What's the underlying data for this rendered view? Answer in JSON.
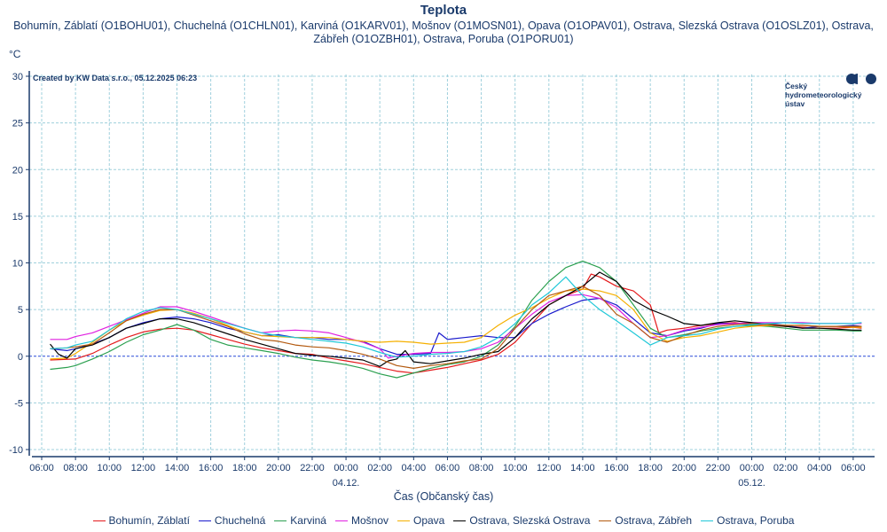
{
  "chart_data": {
    "type": "line",
    "title": "Teplota",
    "subtitle": "Bohumín, Záblatí (O1BOHU01), Chuchelná (O1CHLN01), Karviná (O1KARV01), Mošnov (O1MOSN01), Opava (O1OPAV01), Ostrava, Slezská Ostrava (O1OSLZ01), Ostrava, Zábřeh (O1OZBH01), Ostrava, Poruba (O1PORU01)",
    "ylabel": "°C",
    "xlabel": "Čas (Občanský čas)",
    "credit": "Created by KW Data s.r.o., 05.12.2025 06:23",
    "ylim": [
      -10,
      30
    ],
    "yticks": [
      "30",
      "25",
      "20",
      "15",
      "10",
      "5",
      "0",
      "-5",
      "-10"
    ],
    "ytick_values": [
      30,
      25,
      20,
      15,
      10,
      5,
      0,
      -5,
      -10
    ],
    "xlim_hours": [
      -0.8,
      49.5
    ],
    "xticks": [
      "06:00",
      "08:00",
      "10:00",
      "12:00",
      "14:00",
      "16:00",
      "18:00",
      "20:00",
      "22:00",
      "00:00",
      "02:00",
      "04:00",
      "06:00",
      "08:00",
      "10:00",
      "12:00",
      "14:00",
      "16:00",
      "18:00",
      "20:00",
      "22:00",
      "00:00",
      "02:00",
      "04:00",
      "06:00"
    ],
    "xtick_hours": [
      0,
      2,
      4,
      6,
      8,
      10,
      12,
      14,
      16,
      18,
      20,
      22,
      24,
      26,
      28,
      30,
      32,
      34,
      36,
      38,
      40,
      42,
      44,
      46,
      48
    ],
    "date_labels": [
      {
        "text": "04.12.",
        "hour": 18
      },
      {
        "text": "05.12.",
        "hour": 42
      }
    ],
    "x_unit": "hours since 03.12. 06:00",
    "grid": true,
    "legend_position": "bottom",
    "series": [
      {
        "name": "Bohumín, Záblatí",
        "color": "#e41a1c",
        "x": [
          0.5,
          2,
          3,
          4,
          5,
          6,
          7,
          8,
          9,
          10,
          11,
          12,
          13,
          14,
          15,
          16,
          17,
          18,
          19,
          20,
          21,
          22,
          23,
          24,
          25,
          26,
          27,
          28,
          29,
          30,
          31,
          32,
          32.5,
          33,
          34,
          35,
          36,
          36.5,
          37,
          38,
          39,
          40,
          41,
          42,
          43,
          44,
          45,
          46,
          47,
          48,
          48.5
        ],
        "y": [
          -0.4,
          -0.3,
          0.3,
          1.2,
          2.0,
          2.6,
          2.9,
          3.0,
          2.8,
          2.3,
          1.8,
          1.3,
          0.9,
          0.6,
          0.3,
          0.2,
          -0.2,
          -0.5,
          -0.8,
          -1.2,
          -1.6,
          -1.8,
          -1.5,
          -1.2,
          -0.8,
          -0.4,
          0.2,
          1.5,
          3.5,
          5.5,
          6.5,
          7.2,
          8.8,
          8.5,
          7.5,
          7.0,
          5.5,
          2.5,
          2.8,
          3.0,
          3.3,
          3.5,
          3.6,
          3.4,
          3.3,
          3.2,
          3.1,
          3.0,
          3.0,
          3.1,
          3.0
        ]
      },
      {
        "name": "Chuchelná",
        "color": "#1a1acc",
        "x": [
          0.5,
          1.5,
          2,
          3,
          4,
          5,
          6,
          7,
          8,
          9,
          10,
          11,
          12,
          13,
          14,
          15,
          16,
          17,
          18,
          19,
          20,
          21,
          22,
          23,
          23.5,
          24,
          25,
          26,
          27,
          28,
          29,
          30,
          31,
          32,
          33,
          34,
          35,
          36,
          37,
          38,
          39,
          40,
          41,
          42,
          43,
          44,
          45,
          46,
          47,
          48,
          48.5
        ],
        "y": [
          0.8,
          0.6,
          0.8,
          1.3,
          2.0,
          3.0,
          3.6,
          4.0,
          4.2,
          4.0,
          3.6,
          3.0,
          2.6,
          2.2,
          2.3,
          2.0,
          2.0,
          1.8,
          1.8,
          1.6,
          0.8,
          0.2,
          0.2,
          0.3,
          2.5,
          1.8,
          2.0,
          2.2,
          2.0,
          2.0,
          3.5,
          4.5,
          5.3,
          6.0,
          6.2,
          5.5,
          4.0,
          2.5,
          2.2,
          2.7,
          3.0,
          3.5,
          3.5,
          3.4,
          3.5,
          3.3,
          3.0,
          3.2,
          3.2,
          3.3,
          3.2
        ]
      },
      {
        "name": "Karviná",
        "color": "#2ca050",
        "x": [
          0.5,
          1.5,
          2,
          3,
          4,
          5,
          6,
          7,
          8,
          9,
          10,
          11,
          12,
          13,
          14,
          15,
          16,
          17,
          18,
          19,
          20,
          21,
          22,
          23,
          24,
          25,
          26,
          27,
          28,
          29,
          30,
          31,
          32,
          33,
          34,
          35,
          36,
          37,
          38,
          39,
          40,
          41,
          42,
          43,
          44,
          45,
          46,
          47,
          48,
          48.5
        ],
        "y": [
          -1.4,
          -1.2,
          -1.0,
          -0.3,
          0.5,
          1.5,
          2.3,
          2.8,
          3.4,
          2.8,
          1.8,
          1.2,
          0.9,
          0.6,
          0.3,
          -0.1,
          -0.4,
          -0.6,
          -0.9,
          -1.3,
          -1.9,
          -2.3,
          -1.8,
          -1.3,
          -0.9,
          -0.6,
          0.0,
          1.2,
          3.2,
          6.0,
          8.0,
          9.5,
          10.2,
          9.5,
          8.0,
          5.5,
          3.0,
          2.0,
          2.3,
          2.7,
          3.0,
          3.2,
          3.3,
          3.2,
          3.0,
          2.8,
          2.8,
          2.8,
          2.7,
          2.7
        ]
      },
      {
        "name": "Mošnov",
        "color": "#e020e0",
        "x": [
          0.5,
          1.5,
          2,
          3,
          4,
          5,
          6,
          7,
          8,
          9,
          10,
          11,
          12,
          13,
          14,
          15,
          16,
          17,
          18,
          19,
          20,
          20.5,
          21,
          22,
          23,
          24,
          25,
          26,
          27,
          28,
          29,
          30,
          31,
          32,
          33,
          34,
          35,
          36,
          37,
          38,
          39,
          40,
          41,
          42,
          43,
          44,
          45,
          46,
          47,
          48,
          48.5
        ],
        "y": [
          1.8,
          1.8,
          2.1,
          2.5,
          3.2,
          3.9,
          4.6,
          5.3,
          5.3,
          4.8,
          4.2,
          3.6,
          3.0,
          2.5,
          2.7,
          2.8,
          2.7,
          2.5,
          2.0,
          1.5,
          0.8,
          -0.2,
          0.0,
          0.3,
          0.4,
          0.4,
          0.5,
          0.8,
          1.5,
          3.0,
          4.5,
          5.8,
          6.5,
          6.6,
          6.2,
          5.2,
          3.5,
          2.0,
          2.2,
          2.8,
          3.1,
          3.4,
          3.5,
          3.6,
          3.6,
          3.6,
          3.6,
          3.5,
          3.5,
          3.5,
          3.5
        ]
      },
      {
        "name": "Opava",
        "color": "#f5b000",
        "x": [
          0.5,
          1.5,
          2,
          3,
          4,
          5,
          6,
          7,
          8,
          9,
          10,
          11,
          12,
          13,
          14,
          15,
          16,
          17,
          18,
          19,
          20,
          21,
          22,
          23,
          24,
          25,
          26,
          27,
          28,
          29,
          30,
          31,
          32,
          33,
          34,
          35,
          36,
          37,
          38,
          39,
          40,
          41,
          42,
          43,
          44,
          45,
          46,
          47,
          48,
          48.5
        ],
        "y": [
          -0.3,
          -0.2,
          0.3,
          1.5,
          2.8,
          3.8,
          4.4,
          4.9,
          5.0,
          4.6,
          4.0,
          3.3,
          2.6,
          2.2,
          2.1,
          2.0,
          2.0,
          2.0,
          1.8,
          1.6,
          1.5,
          1.6,
          1.5,
          1.3,
          1.4,
          1.5,
          2.0,
          3.3,
          4.4,
          5.2,
          6.2,
          7.0,
          7.2,
          7.0,
          6.5,
          5.0,
          2.5,
          1.6,
          2.0,
          2.2,
          2.6,
          3.0,
          3.2,
          3.3,
          3.3,
          3.3,
          3.2,
          3.2,
          3.1,
          3.1
        ]
      },
      {
        "name": "Ostrava, Slezská Ostrava",
        "color": "#000000",
        "x": [
          0.5,
          1,
          1.5,
          2,
          3,
          4,
          5,
          6,
          7,
          8,
          9,
          10,
          11,
          12,
          13,
          14,
          15,
          16,
          17,
          18,
          19,
          20,
          20.5,
          21,
          21.5,
          22,
          23,
          24,
          25,
          26,
          27,
          28,
          29,
          30,
          31,
          32,
          33,
          34,
          35,
          36,
          37,
          38,
          39,
          40,
          41,
          42,
          43,
          44,
          45,
          46,
          47,
          48,
          48.5
        ],
        "y": [
          1.3,
          0.2,
          -0.2,
          0.8,
          1.2,
          2.0,
          3.0,
          3.5,
          4.0,
          4.0,
          3.6,
          3.0,
          2.4,
          1.8,
          1.3,
          0.8,
          0.3,
          0.1,
          0.0,
          -0.2,
          -0.4,
          -1.1,
          -0.5,
          -0.3,
          0.6,
          -0.6,
          -0.8,
          -0.5,
          -0.2,
          0.2,
          0.5,
          2.0,
          4.0,
          5.5,
          6.5,
          7.5,
          9.0,
          8.0,
          6.0,
          5.0,
          4.3,
          3.5,
          3.3,
          3.6,
          3.8,
          3.6,
          3.4,
          3.2,
          3.0,
          3.0,
          2.9,
          2.8,
          2.8
        ]
      },
      {
        "name": "Ostrava, Zábřeh",
        "color": "#b35a10",
        "x": [
          0.5,
          1.5,
          2,
          3,
          4,
          5,
          6,
          7,
          8,
          9,
          10,
          11,
          12,
          13,
          14,
          15,
          16,
          17,
          18,
          19,
          20,
          21,
          22,
          23,
          24,
          25,
          26,
          27,
          28,
          29,
          30,
          31,
          32,
          33,
          34,
          35,
          36,
          37,
          38,
          39,
          40,
          41,
          42,
          43,
          44,
          45,
          46,
          47,
          48,
          48.5
        ],
        "y": [
          0.8,
          0.9,
          1.0,
          1.3,
          2.5,
          3.8,
          4.5,
          5.0,
          5.0,
          4.4,
          3.8,
          3.2,
          2.4,
          1.8,
          1.6,
          1.2,
          1.0,
          0.9,
          0.6,
          0.2,
          -0.3,
          -1.0,
          -1.3,
          -1.0,
          -0.8,
          -0.5,
          -0.3,
          0.8,
          3.0,
          5.0,
          6.5,
          7.0,
          7.5,
          6.5,
          4.5,
          3.5,
          2.0,
          1.5,
          2.2,
          2.8,
          3.2,
          3.4,
          3.5,
          3.4,
          3.3,
          3.3,
          3.2,
          3.2,
          3.2,
          3.2
        ]
      },
      {
        "name": "Ostrava, Poruba",
        "color": "#20c8d8",
        "x": [
          0.5,
          1.5,
          2,
          3,
          4,
          5,
          6,
          7,
          8,
          9,
          10,
          11,
          12,
          13,
          14,
          15,
          16,
          17,
          18,
          19,
          20,
          21,
          22,
          23,
          24,
          25,
          26,
          27,
          28,
          29,
          30,
          31,
          32,
          33,
          34,
          35,
          36,
          37,
          38,
          39,
          40,
          41,
          42,
          43,
          44,
          45,
          46,
          47,
          48,
          48.5
        ],
        "y": [
          0.8,
          0.9,
          1.2,
          1.6,
          2.8,
          4.0,
          4.8,
          5.2,
          5.0,
          4.5,
          4.0,
          3.5,
          3.0,
          2.5,
          2.2,
          2.0,
          1.8,
          1.6,
          1.4,
          1.0,
          0.4,
          -0.1,
          0.0,
          0.2,
          0.3,
          0.5,
          1.0,
          2.0,
          3.5,
          5.5,
          6.8,
          8.5,
          6.5,
          5.0,
          3.8,
          2.5,
          1.2,
          2.0,
          2.2,
          2.4,
          2.9,
          3.2,
          3.4,
          3.5,
          3.6,
          3.5,
          3.5,
          3.5,
          3.5,
          3.6
        ]
      }
    ]
  },
  "logo": {
    "line1": "Český",
    "line2": "hydrometeorologický",
    "line3": "ústav"
  }
}
